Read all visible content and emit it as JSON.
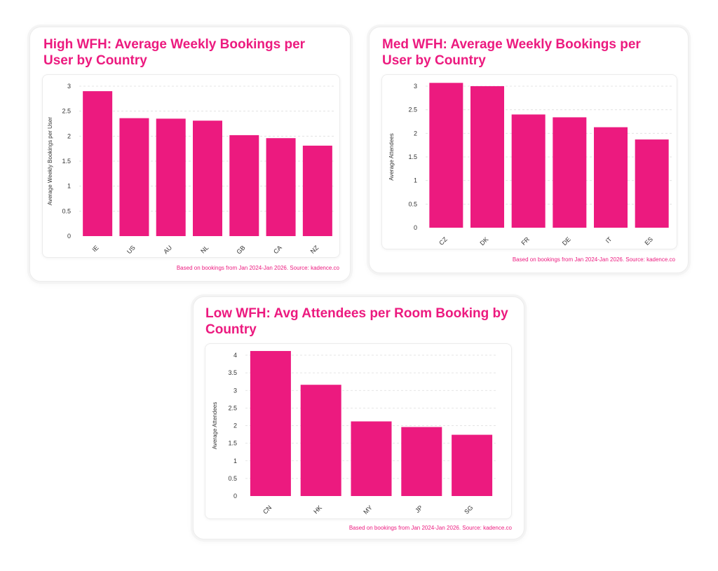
{
  "colors": {
    "accent": "#ec1a7f",
    "bar": "#ec1a7f",
    "grid": "#dddddd"
  },
  "charts": [
    {
      "title": "High WFH: Average Weekly Bookings per User by Country",
      "footnote": "Based on bookings from Jan 2024-Jan 2026. Source: kadence.co"
    },
    {
      "title": "Med WFH: Average Weekly Bookings per User by Country",
      "footnote": "Based on bookings from Jan 2024-Jan 2026. Source: kadence.co"
    },
    {
      "title": "Low WFH: Avg Attendees per Room Booking by Country",
      "footnote": "Based on bookings from Jan 2024-Jan 2026. Source: kadence.co"
    }
  ],
  "chart_data": [
    {
      "type": "bar",
      "title": "High WFH: Average Weekly Bookings per User by Country",
      "categories": [
        "IE",
        "US",
        "AU",
        "NL",
        "GB",
        "CA",
        "NZ"
      ],
      "values": [
        2.9,
        2.36,
        2.35,
        2.31,
        2.02,
        1.96,
        1.81
      ],
      "xlabel": "",
      "ylabel": "Average Weekly Bookings per User",
      "ylim": [
        0,
        3
      ],
      "yticks": [
        0,
        0.5,
        1,
        1.5,
        2,
        2.5,
        3
      ],
      "grid": true
    },
    {
      "type": "bar",
      "title": "Med WFH: Average Weekly Bookings per User by Country",
      "categories": [
        "CZ",
        "DK",
        "FR",
        "DE",
        "IT",
        "ES"
      ],
      "values": [
        3.07,
        3.0,
        2.4,
        2.34,
        2.13,
        1.87
      ],
      "xlabel": "",
      "ylabel": "Average Attendees",
      "ylim": [
        0,
        3
      ],
      "yticks": [
        0,
        0.5,
        1,
        1.5,
        2,
        2.5,
        3
      ],
      "grid": true
    },
    {
      "type": "bar",
      "title": "Low WFH: Avg Attendees per Room Booking by Country",
      "categories": [
        "CN",
        "HK",
        "MY",
        "JP",
        "SG"
      ],
      "values": [
        4.12,
        3.16,
        2.12,
        1.96,
        1.74
      ],
      "xlabel": "",
      "ylabel": "Average Attendees",
      "ylim": [
        0,
        4
      ],
      "yticks": [
        0,
        0.5,
        1,
        1.5,
        2,
        2.5,
        3,
        3.5,
        4
      ],
      "grid": true
    }
  ]
}
